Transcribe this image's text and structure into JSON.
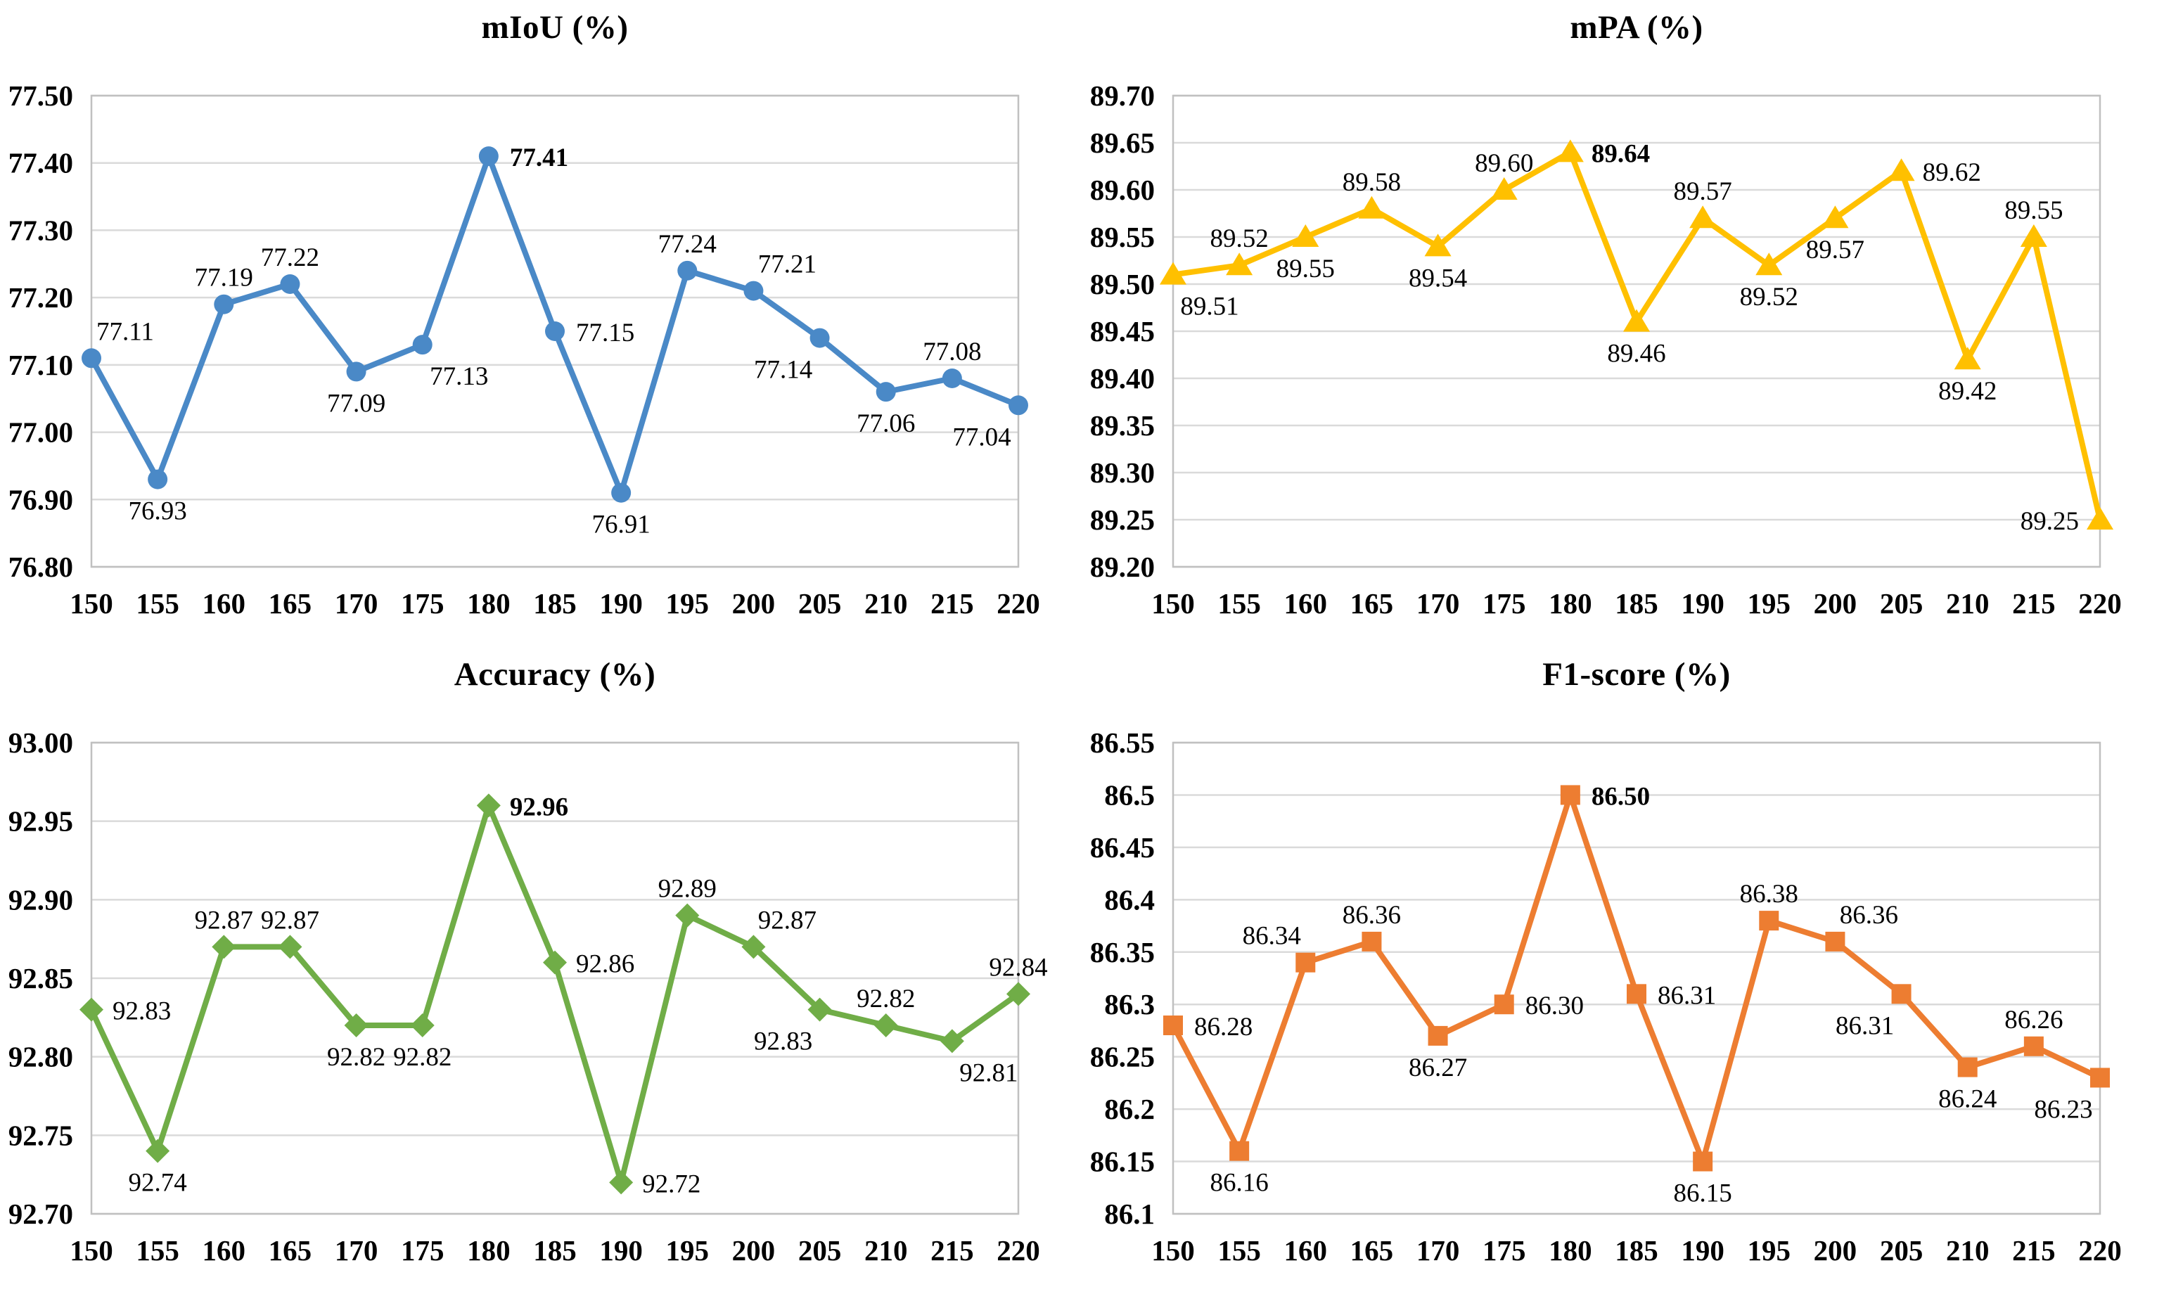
{
  "page": {
    "background": "#FFFFFF",
    "grid_color": "#DADADA",
    "plot_border_color": "#C0C0C0",
    "text_color": "#000000"
  },
  "chart_data": [
    {
      "id": "miou",
      "type": "line",
      "title": "mIoU (%)",
      "series_color": "#4A89C7",
      "marker": "circle",
      "xlabel": "",
      "ylabel": "",
      "legend": "none",
      "grid": true,
      "x": [
        150,
        155,
        160,
        165,
        170,
        175,
        180,
        185,
        190,
        195,
        200,
        205,
        210,
        215,
        220
      ],
      "x_tick_labels": [
        "150",
        "155",
        "160",
        "165",
        "170",
        "175",
        "180",
        "185",
        "190",
        "195",
        "200",
        "205",
        "210",
        "215",
        "220"
      ],
      "values": [
        77.11,
        76.93,
        77.19,
        77.22,
        77.09,
        77.13,
        77.41,
        77.15,
        76.91,
        77.24,
        77.21,
        77.14,
        77.06,
        77.08,
        77.04
      ],
      "point_labels": [
        "77.11",
        "76.93",
        "77.19",
        "77.22",
        "77.09",
        "77.13",
        "77.41",
        "77.15",
        "76.91",
        "77.24",
        "77.21",
        "77.14",
        "77.06",
        "77.08",
        "77.04"
      ],
      "label_pos": [
        "above-right",
        "below",
        "above",
        "above",
        "below",
        "below-right",
        "right",
        "right",
        "below",
        "above",
        "above-right",
        "below-left",
        "below",
        "above",
        "below-left"
      ],
      "bold_point_index": 6,
      "ylim": [
        76.8,
        77.5
      ],
      "ytick_values": [
        77.5,
        77.4,
        77.3,
        77.2,
        77.1,
        77.0,
        76.9,
        76.8
      ],
      "ytick_labels": [
        "77.50",
        "77.40",
        "77.30",
        "77.20",
        "77.10",
        "77.00",
        "76.90",
        "76.80"
      ]
    },
    {
      "id": "mpa",
      "type": "line",
      "title": "mPA (%)",
      "series_color": "#FFC000",
      "marker": "triangle",
      "xlabel": "",
      "ylabel": "",
      "legend": "none",
      "grid": true,
      "x": [
        150,
        155,
        160,
        165,
        170,
        175,
        180,
        185,
        190,
        195,
        200,
        205,
        210,
        215,
        220
      ],
      "x_tick_labels": [
        "150",
        "155",
        "160",
        "165",
        "170",
        "175",
        "180",
        "185",
        "190",
        "195",
        "200",
        "205",
        "210",
        "215",
        "220"
      ],
      "values": [
        89.51,
        89.52,
        89.55,
        89.58,
        89.54,
        89.6,
        89.64,
        89.46,
        89.57,
        89.52,
        89.57,
        89.62,
        89.42,
        89.55,
        89.25
      ],
      "point_labels": [
        "89.51",
        "89.52",
        "89.55",
        "89.58",
        "89.54",
        "89.60",
        "89.64",
        "89.46",
        "89.57",
        "89.52",
        "89.57",
        "89.62",
        "89.42",
        "89.55",
        "89.25"
      ],
      "label_pos": [
        "below-right",
        "above",
        "below",
        "above",
        "below",
        "above",
        "right",
        "below",
        "above",
        "below",
        "below",
        "right",
        "below",
        "above",
        "left"
      ],
      "bold_point_index": 6,
      "ylim": [
        89.2,
        89.7
      ],
      "ytick_values": [
        89.7,
        89.65,
        89.6,
        89.55,
        89.5,
        89.45,
        89.4,
        89.35,
        89.3,
        89.25,
        89.2
      ],
      "ytick_labels": [
        "89.70",
        "89.65",
        "89.60",
        "89.55",
        "89.50",
        "89.45",
        "89.40",
        "89.35",
        "89.30",
        "89.25",
        "89.20"
      ]
    },
    {
      "id": "accuracy",
      "type": "line",
      "title": "Accuracy (%)",
      "series_color": "#70AD47",
      "marker": "diamond",
      "xlabel": "",
      "ylabel": "",
      "legend": "none",
      "grid": true,
      "x": [
        150,
        155,
        160,
        165,
        170,
        175,
        180,
        185,
        190,
        195,
        200,
        205,
        210,
        215,
        220
      ],
      "x_tick_labels": [
        "150",
        "155",
        "160",
        "165",
        "170",
        "175",
        "180",
        "185",
        "190",
        "195",
        "200",
        "205",
        "210",
        "215",
        "220"
      ],
      "values": [
        92.83,
        92.74,
        92.87,
        92.87,
        92.82,
        92.82,
        92.96,
        92.86,
        92.72,
        92.89,
        92.87,
        92.83,
        92.82,
        92.81,
        92.84
      ],
      "point_labels": [
        "92.83",
        "92.74",
        "92.87",
        "92.87",
        "92.82",
        "92.82",
        "92.96",
        "92.86",
        "92.72",
        "92.89",
        "92.87",
        "92.83",
        "92.82",
        "92.81",
        "92.84"
      ],
      "label_pos": [
        "right",
        "below",
        "above",
        "above",
        "below",
        "below",
        "right",
        "right",
        "right",
        "above",
        "above-right",
        "below-left",
        "above",
        "below-right",
        "above"
      ],
      "bold_point_index": 6,
      "ylim": [
        92.7,
        93.0
      ],
      "ytick_values": [
        93.0,
        92.95,
        92.9,
        92.85,
        92.8,
        92.75,
        92.7
      ],
      "ytick_labels": [
        "93.00",
        "92.95",
        "92.90",
        "92.85",
        "92.80",
        "92.75",
        "92.70"
      ]
    },
    {
      "id": "f1",
      "type": "line",
      "title": "F1-score (%)",
      "series_color": "#ED7D31",
      "marker": "square",
      "xlabel": "",
      "ylabel": "",
      "legend": "none",
      "grid": true,
      "x": [
        150,
        155,
        160,
        165,
        170,
        175,
        180,
        185,
        190,
        195,
        200,
        205,
        210,
        215,
        220
      ],
      "x_tick_labels": [
        "150",
        "155",
        "160",
        "165",
        "170",
        "175",
        "180",
        "185",
        "190",
        "195",
        "200",
        "205",
        "210",
        "215",
        "220"
      ],
      "values": [
        86.28,
        86.16,
        86.34,
        86.36,
        86.27,
        86.3,
        86.5,
        86.31,
        86.15,
        86.38,
        86.36,
        86.31,
        86.24,
        86.26,
        86.23
      ],
      "point_labels": [
        "86.28",
        "86.16",
        "86.34",
        "86.36",
        "86.27",
        "86.30",
        "86.50",
        "86.31",
        "86.15",
        "86.38",
        "86.36",
        "86.31",
        "86.24",
        "86.26",
        "86.23"
      ],
      "label_pos": [
        "right",
        "below",
        "above-left",
        "above",
        "below",
        "right",
        "right",
        "right",
        "below",
        "above",
        "above-right",
        "below-left",
        "below",
        "above",
        "below-left"
      ],
      "bold_point_index": 6,
      "ylim": [
        86.1,
        86.55
      ],
      "ytick_values": [
        86.55,
        86.5,
        86.45,
        86.4,
        86.35,
        86.3,
        86.25,
        86.2,
        86.15,
        86.1
      ],
      "ytick_labels": [
        "86.55",
        "86.5",
        "86.45",
        "86.4",
        "86.35",
        "86.3",
        "86.25",
        "86.2",
        "86.15",
        "86.1"
      ]
    }
  ]
}
